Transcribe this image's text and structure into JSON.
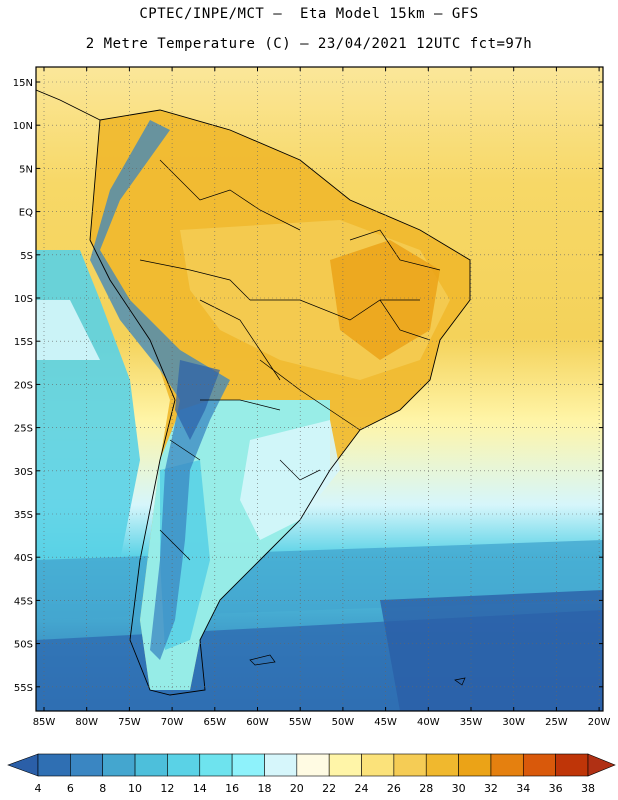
{
  "header": {
    "line1": "CPTEC/INPE/MCT –  Eta Model 15km – GFS",
    "line2": "2 Metre Temperature (C) – 23/04/2021 12UTC fct=97h"
  },
  "map": {
    "lat_ticks": [
      "15N",
      "10N",
      "5N",
      "EQ",
      "5S",
      "10S",
      "15S",
      "20S",
      "25S",
      "30S",
      "35S",
      "40S",
      "45S",
      "50S",
      "55S"
    ],
    "lon_ticks": [
      "85W",
      "80W",
      "75W",
      "70W",
      "65W",
      "60W",
      "55W",
      "50W",
      "45W",
      "40W",
      "35W",
      "30W",
      "25W",
      "20W"
    ]
  },
  "legend": {
    "labels": [
      "4",
      "6",
      "8",
      "10",
      "12",
      "14",
      "16",
      "18",
      "20",
      "22",
      "24",
      "26",
      "28",
      "30",
      "32",
      "34",
      "36",
      "38"
    ],
    "colors": [
      "#2b5fa8",
      "#2f6fb3",
      "#3a86c2",
      "#44a6cf",
      "#4dbfdb",
      "#5ad2e6",
      "#6ee3ee",
      "#8ef2fb",
      "#d6f6fb",
      "#fffbe3",
      "#fff5a8",
      "#fbe27a",
      "#f5cc55",
      "#f0b82e",
      "#eba317",
      "#e5800f",
      "#d9590b",
      "#bf3508",
      "#b03014"
    ]
  }
}
